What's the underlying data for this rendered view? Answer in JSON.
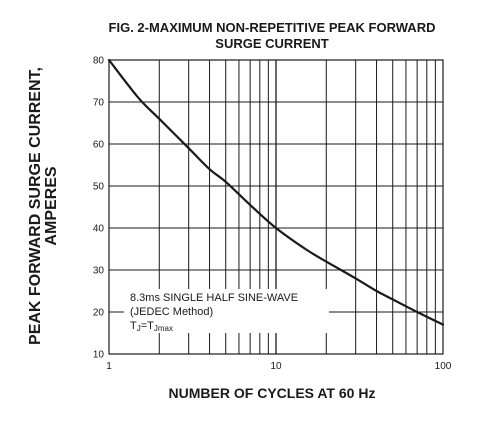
{
  "chart_data": {
    "type": "line",
    "title": [
      "FIG. 2-MAXIMUM NON-REPETITIVE PEAK FORWARD",
      "SURGE CURRENT"
    ],
    "xlabel": "NUMBER OF CYCLES AT 60 Hz",
    "ylabel": [
      "PEAK  FORWARD SURGE CURRENT,",
      "AMPERES"
    ],
    "x_scale": "log",
    "xlim": [
      1,
      100
    ],
    "ylim": [
      10,
      80
    ],
    "x_ticks": [
      1,
      10,
      100
    ],
    "x_tick_labels": [
      "1",
      "10",
      "100"
    ],
    "y_ticks": [
      10,
      20,
      30,
      40,
      50,
      60,
      70,
      80
    ],
    "y_tick_labels": [
      "10",
      "20",
      "30",
      "40",
      "50",
      "60",
      "70",
      "80"
    ],
    "grid": true,
    "series": [
      {
        "x": [
          1,
          1.5,
          2,
          3,
          4,
          5,
          7,
          10,
          15,
          20,
          30,
          40,
          50,
          70,
          100
        ],
        "y": [
          80,
          71,
          66,
          59,
          54,
          51,
          45.5,
          40,
          35,
          32,
          28,
          25,
          23,
          20,
          17
        ]
      }
    ],
    "annotation": {
      "line1": "8.3ms SINGLE HALF SINE-WAVE",
      "line2": "(JEDEC Method)",
      "line3_prefix": "T",
      "line3_sub1": "J",
      "line3_mid": "=T",
      "line3_sub2": "Jmax"
    }
  }
}
